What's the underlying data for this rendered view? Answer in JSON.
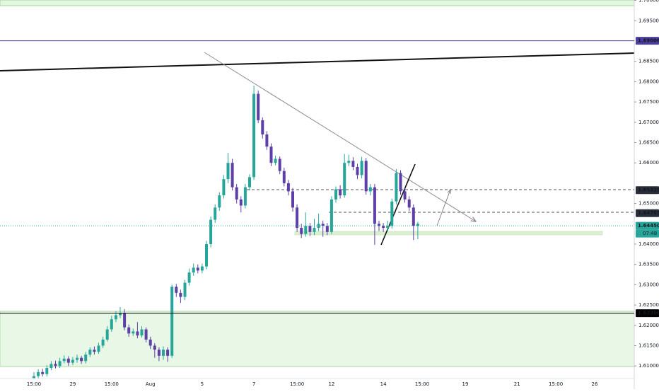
{
  "chart_data": {
    "type": "candlestick",
    "categories": [
      "15:00",
      null,
      null,
      null,
      null,
      null,
      null,
      null,
      null,
      "29",
      null,
      null,
      null,
      null,
      null,
      null,
      null,
      null,
      "15:00",
      null,
      null,
      null,
      null,
      null,
      null,
      null,
      null,
      "Aug",
      null,
      null,
      null,
      null,
      null,
      null,
      null,
      null,
      null,
      null,
      null,
      "5",
      null,
      null,
      null,
      null,
      null,
      null,
      null,
      null,
      null,
      null,
      null,
      "7",
      null,
      null,
      null,
      null,
      null,
      null,
      null,
      null,
      null,
      "15:00",
      null,
      null,
      null,
      null,
      null,
      null,
      null,
      "12",
      null,
      null,
      null,
      null,
      null,
      null,
      null,
      null,
      null,
      null,
      null,
      "14",
      null,
      null,
      null,
      null,
      null,
      null,
      null,
      null,
      "15:00",
      null,
      null,
      null,
      null,
      null,
      null,
      null,
      null,
      null,
      "19",
      null,
      null,
      null,
      null,
      null,
      null,
      null,
      null,
      null,
      null,
      null,
      "21",
      null,
      null,
      null,
      null,
      null,
      null,
      null,
      null,
      "15:00",
      null,
      null,
      null,
      null,
      null,
      null,
      null,
      null,
      "26"
    ],
    "open": [
      1.607,
      1.6075,
      1.6085,
      1.608,
      1.6095,
      1.6105,
      1.61,
      1.6112,
      1.6118,
      1.6108,
      1.6115,
      1.612,
      1.6112,
      1.6128,
      1.614,
      1.6135,
      1.615,
      1.6165,
      1.619,
      1.6215,
      1.6225,
      1.623,
      1.6195,
      1.618,
      1.6185,
      1.6175,
      1.619,
      1.6165,
      1.615,
      1.614,
      1.6125,
      1.614,
      1.6125,
      1.6295,
      1.628,
      1.627,
      1.6305,
      1.633,
      1.6342,
      1.6335,
      1.6345,
      1.64,
      1.646,
      1.649,
      1.652,
      1.656,
      1.66,
      1.654,
      1.651,
      1.6495,
      1.654,
      1.6565,
      1.677,
      1.6705,
      1.667,
      1.664,
      1.66,
      1.661,
      1.658,
      1.655,
      1.653,
      1.649,
      1.644,
      1.6425,
      1.6445,
      1.643,
      1.644,
      1.645,
      1.6445,
      1.643,
      1.651,
      1.6535,
      1.652,
      1.66,
      1.6605,
      1.659,
      1.657,
      1.6605,
      1.653,
      1.654,
      1.645,
      1.6445,
      1.644,
      1.6445,
      1.6505,
      1.6575,
      1.653,
      1.651,
      1.649,
      1.6445,
      null,
      null,
      null,
      null,
      null,
      null,
      null,
      null,
      null,
      null,
      null,
      null,
      null,
      null,
      null,
      null,
      null,
      null,
      null,
      null,
      null,
      null,
      null,
      null,
      null,
      null,
      null,
      null,
      null,
      null,
      null,
      null,
      null,
      null,
      null,
      null,
      null,
      null,
      null,
      null,
      null
    ],
    "high": [
      1.6085,
      1.6092,
      1.6093,
      1.6102,
      1.6112,
      1.6113,
      1.612,
      1.6126,
      1.6124,
      1.6122,
      1.6128,
      1.6125,
      1.6135,
      1.6146,
      1.6148,
      1.6157,
      1.6172,
      1.6198,
      1.6224,
      1.6235,
      1.6245,
      1.624,
      1.6202,
      1.6192,
      1.6208,
      1.6198,
      1.6195,
      1.6172,
      1.6156,
      1.6146,
      1.6148,
      1.6146,
      1.63,
      1.6302,
      1.6288,
      1.6312,
      1.634,
      1.6352,
      1.635,
      1.6352,
      1.6408,
      1.6468,
      1.6498,
      1.6528,
      1.657,
      1.6625,
      1.661,
      1.6548,
      1.6518,
      1.6548,
      1.6572,
      1.679,
      1.6778,
      1.6712,
      1.6678,
      1.6648,
      1.6618,
      1.6616,
      1.6588,
      1.6558,
      1.6538,
      1.6498,
      1.645,
      1.6478,
      1.6452,
      1.6462,
      1.6475,
      1.6458,
      1.6452,
      1.6518,
      1.6542,
      1.6545,
      1.6622,
      1.662,
      1.6614,
      1.6598,
      1.6615,
      1.6612,
      1.6548,
      1.6548,
      1.6458,
      1.6452,
      1.6458,
      1.6512,
      1.6585,
      1.6582,
      1.6538,
      1.6518,
      1.6498,
      1.6455,
      null,
      null,
      null,
      null,
      null,
      null,
      null,
      null,
      null,
      null,
      null,
      null,
      null,
      null,
      null,
      null,
      null,
      null,
      null,
      null,
      null,
      null,
      null,
      null,
      null,
      null,
      null,
      null,
      null,
      null,
      null,
      null,
      null,
      null,
      null,
      null,
      null,
      null,
      null,
      null,
      null
    ],
    "low": [
      1.6062,
      1.607,
      1.6074,
      1.6074,
      1.609,
      1.6094,
      1.6095,
      1.6106,
      1.61,
      1.6102,
      1.6108,
      1.6105,
      1.6106,
      1.6122,
      1.6128,
      1.613,
      1.6144,
      1.616,
      1.6184,
      1.6208,
      1.6218,
      1.6188,
      1.6172,
      1.6174,
      1.6168,
      1.617,
      1.6158,
      1.6142,
      1.612,
      1.6112,
      1.6115,
      1.611,
      1.612,
      1.627,
      1.6255,
      1.6262,
      1.6298,
      1.6322,
      1.6328,
      1.6328,
      1.6338,
      1.6392,
      1.6452,
      1.6482,
      1.6512,
      1.655,
      1.6532,
      1.65,
      1.6478,
      1.6488,
      1.6532,
      1.6558,
      1.6698,
      1.666,
      1.6632,
      1.6592,
      1.6594,
      1.6572,
      1.6542,
      1.652,
      1.648,
      1.643,
      1.6415,
      1.6418,
      1.642,
      1.6422,
      1.6432,
      1.6418,
      1.6422,
      1.6425,
      1.6502,
      1.6512,
      1.6514,
      1.6592,
      1.6582,
      1.656,
      1.6562,
      1.6522,
      1.652,
      1.6398,
      1.6432,
      1.643,
      1.6432,
      1.6438,
      1.6498,
      1.6522,
      1.6502,
      1.6482,
      1.641,
      1.6412,
      null,
      null,
      null,
      null,
      null,
      null,
      null,
      null,
      null,
      null,
      null,
      null,
      null,
      null,
      null,
      null,
      null,
      null,
      null,
      null,
      null,
      null,
      null,
      null,
      null,
      null,
      null,
      null,
      null,
      null,
      null,
      null,
      null,
      null,
      null,
      null,
      null,
      null,
      null,
      null,
      null
    ],
    "close": [
      1.6075,
      1.6085,
      1.608,
      1.6095,
      1.6105,
      1.61,
      1.6112,
      1.6118,
      1.6108,
      1.6115,
      1.612,
      1.6112,
      1.6128,
      1.614,
      1.6135,
      1.615,
      1.6165,
      1.619,
      1.6215,
      1.6225,
      1.623,
      1.6195,
      1.618,
      1.6185,
      1.6175,
      1.619,
      1.6165,
      1.615,
      1.614,
      1.6125,
      1.614,
      1.6125,
      1.6295,
      1.628,
      1.627,
      1.6305,
      1.633,
      1.6342,
      1.6335,
      1.6345,
      1.64,
      1.646,
      1.649,
      1.652,
      1.656,
      1.66,
      1.654,
      1.651,
      1.6495,
      1.654,
      1.6565,
      1.677,
      1.6705,
      1.667,
      1.664,
      1.66,
      1.661,
      1.658,
      1.655,
      1.653,
      1.649,
      1.644,
      1.6425,
      1.6445,
      1.643,
      1.644,
      1.645,
      1.6445,
      1.643,
      1.651,
      1.6535,
      1.652,
      1.66,
      1.6605,
      1.659,
      1.657,
      1.6605,
      1.653,
      1.654,
      1.645,
      1.6445,
      1.644,
      1.6445,
      1.6505,
      1.6575,
      1.653,
      1.651,
      1.649,
      1.6445,
      1.645,
      null,
      null,
      null,
      null,
      null,
      null,
      null,
      null,
      null,
      null,
      null,
      null,
      null,
      null,
      null,
      null,
      null,
      null,
      null,
      null,
      null,
      null,
      null,
      null,
      null,
      null,
      null,
      null,
      null,
      null,
      null,
      null,
      null,
      null,
      null,
      null,
      null,
      null,
      null,
      null,
      null
    ],
    "up_color": "#26a69a",
    "down_color": "#5e3fa8",
    "ylim": [
      1.6069,
      1.7001
    ],
    "yticks": [
      {
        "value": 1.7,
        "label": "1.70000"
      },
      {
        "value": 1.695,
        "label": "1.69500"
      },
      {
        "value": 1.685,
        "label": "1.68500"
      },
      {
        "value": 1.68,
        "label": "1.68000"
      },
      {
        "value": 1.675,
        "label": "1.67500"
      },
      {
        "value": 1.67,
        "label": "1.67000"
      },
      {
        "value": 1.665,
        "label": "1.66500"
      },
      {
        "value": 1.66,
        "label": "1.66000"
      },
      {
        "value": 1.65,
        "label": "1.65000"
      },
      {
        "value": 1.64,
        "label": "1.64000"
      },
      {
        "value": 1.635,
        "label": "1.63500"
      },
      {
        "value": 1.63,
        "label": "1.63000"
      },
      {
        "value": 1.625,
        "label": "1.62500"
      },
      {
        "value": 1.62,
        "label": "1.62000"
      },
      {
        "value": 1.615,
        "label": "1.61500"
      },
      {
        "value": 1.61,
        "label": "1.61000"
      }
    ],
    "grid": false,
    "price_lines": [
      {
        "value": 1.69006,
        "color": "#4b3e9e",
        "line": "solid"
      },
      {
        "value": 1.65329,
        "color": "#2a2e39",
        "line": "none"
      },
      {
        "value": 1.64763,
        "color": "#2a2e39",
        "line": "none"
      },
      {
        "value": 1.6445,
        "label": "1.64450",
        "color": "#26a69a",
        "line": "dotted"
      },
      {
        "value": 1.623,
        "label": "1.62300",
        "color": "#000000",
        "line": "solid"
      }
    ],
    "countdown": "07:48"
  }
}
